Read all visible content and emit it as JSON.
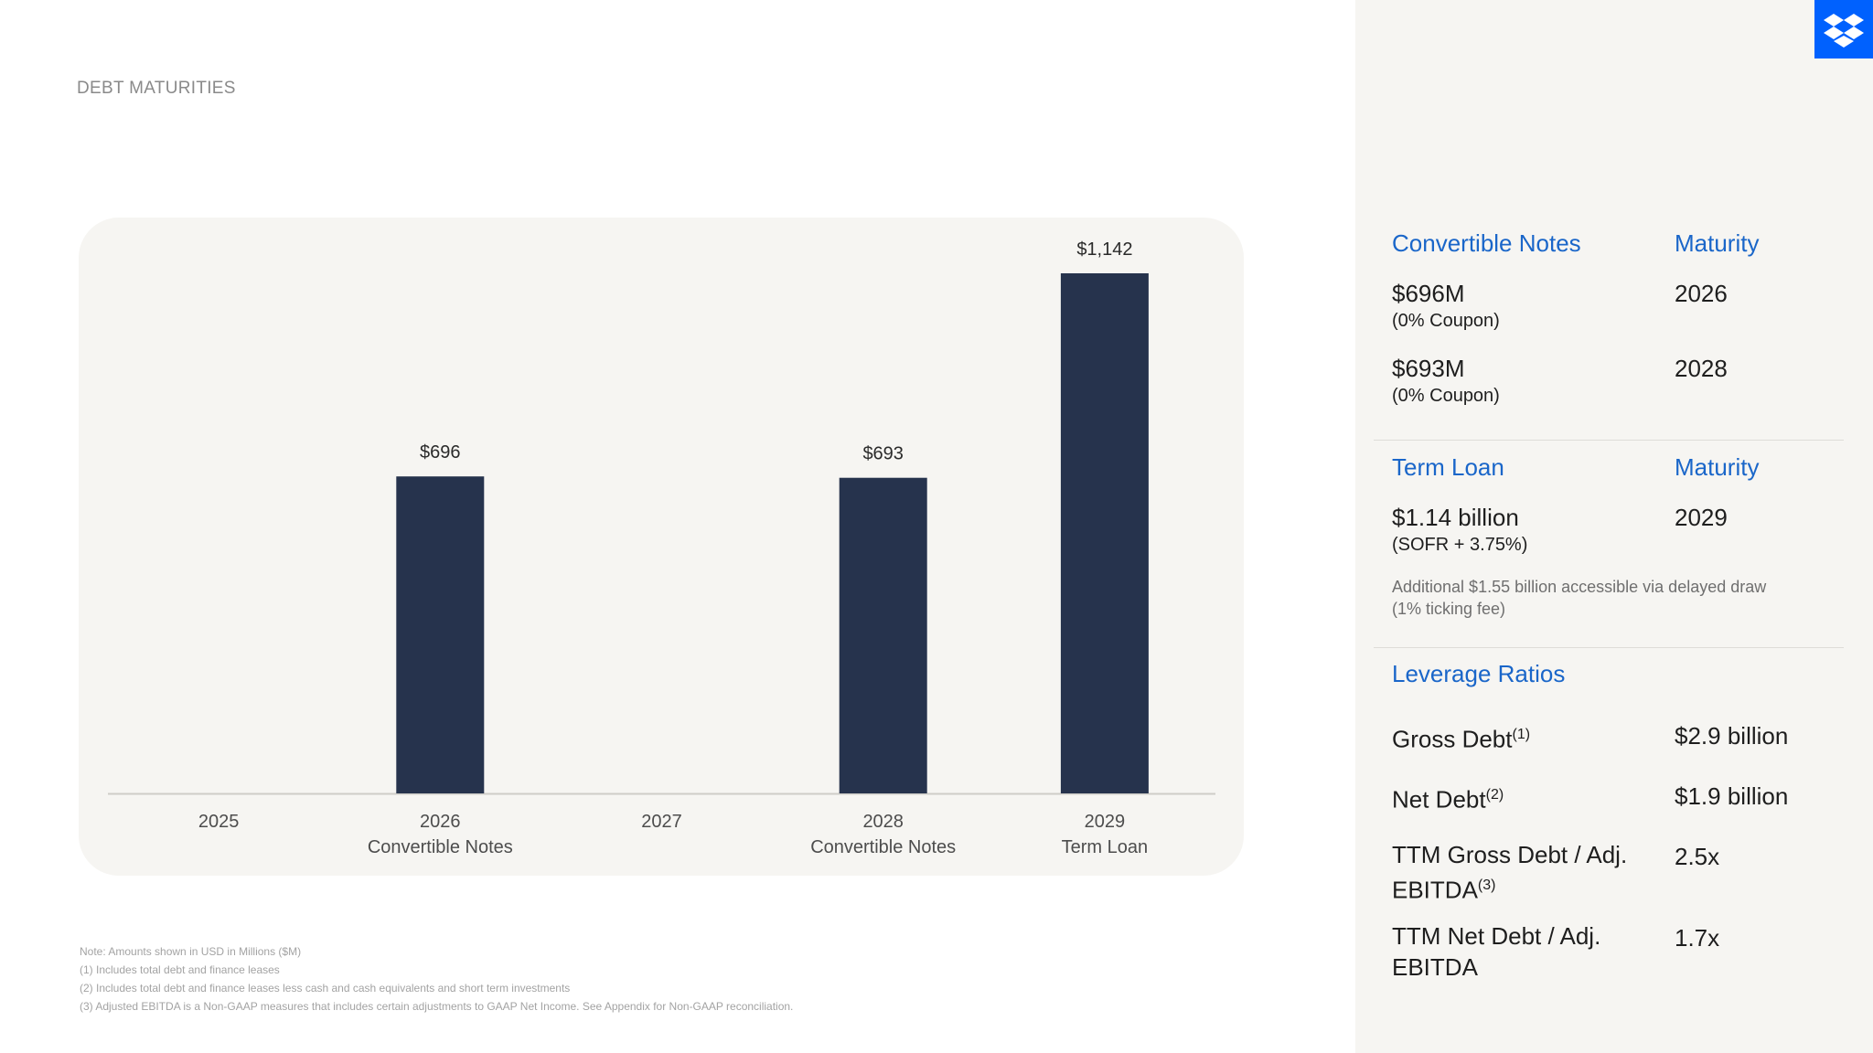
{
  "slide": {
    "title": "DEBT MATURITIES"
  },
  "colors": {
    "bar": "#26334d",
    "accent": "#1a66c9",
    "logo_bg": "#0061fe"
  },
  "logo": {
    "icon": "dropbox-logo-icon"
  },
  "chart_data": {
    "type": "bar",
    "categories": [
      "2025",
      "2026",
      "2027",
      "2028",
      "2029"
    ],
    "category_sublabels": [
      "",
      "Convertible Notes",
      "",
      "Convertible Notes",
      "Term Loan"
    ],
    "values": [
      null,
      696,
      null,
      693,
      1142
    ],
    "data_labels": [
      "",
      "$696",
      "",
      "$693",
      "$1,142"
    ],
    "ylim": [
      0,
      1142
    ],
    "grid": false,
    "title": "",
    "xlabel": "",
    "ylabel": ""
  },
  "right": {
    "convertible": {
      "header": "Convertible Notes",
      "maturity_header": "Maturity",
      "items": [
        {
          "amount": "$696M",
          "coupon": "(0% Coupon)",
          "maturity": "2026"
        },
        {
          "amount": "$693M",
          "coupon": "(0% Coupon)",
          "maturity": "2028"
        }
      ]
    },
    "term_loan": {
      "header": "Term Loan",
      "maturity_header": "Maturity",
      "amount": "$1.14 billion",
      "rate": "(SOFR + 3.75%)",
      "maturity": "2029",
      "note_line1": "Additional $1.55 billion accessible via delayed draw",
      "note_line2": "(1% ticking fee)"
    },
    "leverage": {
      "header": "Leverage Ratios",
      "rows": [
        {
          "label_line1": "Gross Debt",
          "sup": "(1)",
          "label_line2": "",
          "value": "$2.9 billion"
        },
        {
          "label_line1": "Net Debt",
          "sup": "(2)",
          "label_line2": "",
          "value": "$1.9 billion"
        },
        {
          "label_line1": "TTM Gross Debt / Adj.",
          "label_line2": "EBITDA",
          "sup": "(3)",
          "value": "2.5x"
        },
        {
          "label_line1": "TTM Net Debt / Adj.",
          "label_line2": "EBITDA",
          "sup": "",
          "value": "1.7x"
        }
      ]
    }
  },
  "footnotes": [
    "Note: Amounts shown in USD in Millions ($M)",
    "(1) Includes total debt and finance leases",
    "(2) Includes total debt and finance leases less cash and cash equivalents and short term investments",
    "(3) Adjusted EBITDA is a Non-GAAP measures that includes certain adjustments to GAAP Net Income. See Appendix for Non-GAAP reconciliation."
  ]
}
